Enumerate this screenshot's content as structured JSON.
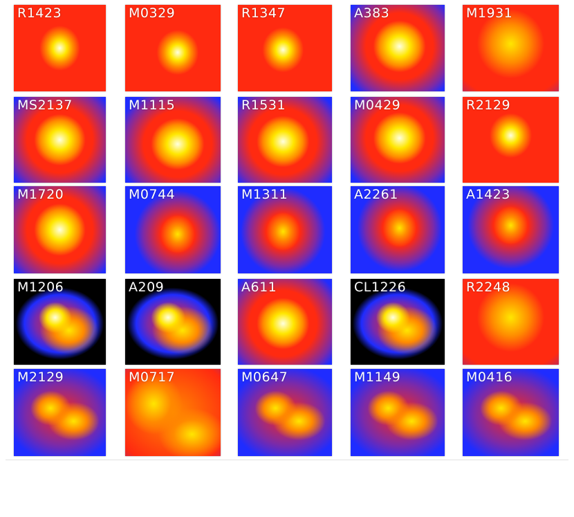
{
  "figure": {
    "panels": [
      {
        "label": "R1423",
        "style": "compact"
      },
      {
        "label": "M0329",
        "style": "compact"
      },
      {
        "label": "R1347",
        "style": "compact"
      },
      {
        "label": "A383",
        "style": "extended"
      },
      {
        "label": "M1931",
        "style": "hot"
      },
      {
        "label": "MS2137",
        "style": "extended"
      },
      {
        "label": "M1115",
        "style": "extended"
      },
      {
        "label": "R1531",
        "style": "extended"
      },
      {
        "label": "M0429",
        "style": "extended"
      },
      {
        "label": "R2129",
        "style": "compact"
      },
      {
        "label": "M1720",
        "style": "extended"
      },
      {
        "label": "M0744",
        "style": "faint"
      },
      {
        "label": "M1311",
        "style": "faint"
      },
      {
        "label": "A2261",
        "style": "faint"
      },
      {
        "label": "A1423",
        "style": "faint"
      },
      {
        "label": "M1206",
        "style": "irregular-dark"
      },
      {
        "label": "A209",
        "style": "irregular-dark"
      },
      {
        "label": "A611",
        "style": "extended"
      },
      {
        "label": "CL1226",
        "style": "irregular-dark"
      },
      {
        "label": "R2248",
        "style": "hot"
      },
      {
        "label": "M2129",
        "style": "irregular"
      },
      {
        "label": "M0717",
        "style": "hot-irregular"
      },
      {
        "label": "M0647",
        "style": "irregular"
      },
      {
        "label": "M1149",
        "style": "irregular"
      },
      {
        "label": "M0416",
        "style": "irregular"
      }
    ],
    "colors": {
      "black": "#000000",
      "blue": "#1f2cff",
      "purple": "#7b2aa8",
      "red": "#ff2a10",
      "orange": "#ff8a00",
      "yellow": "#ffe600",
      "white": "#ffffe0"
    }
  }
}
